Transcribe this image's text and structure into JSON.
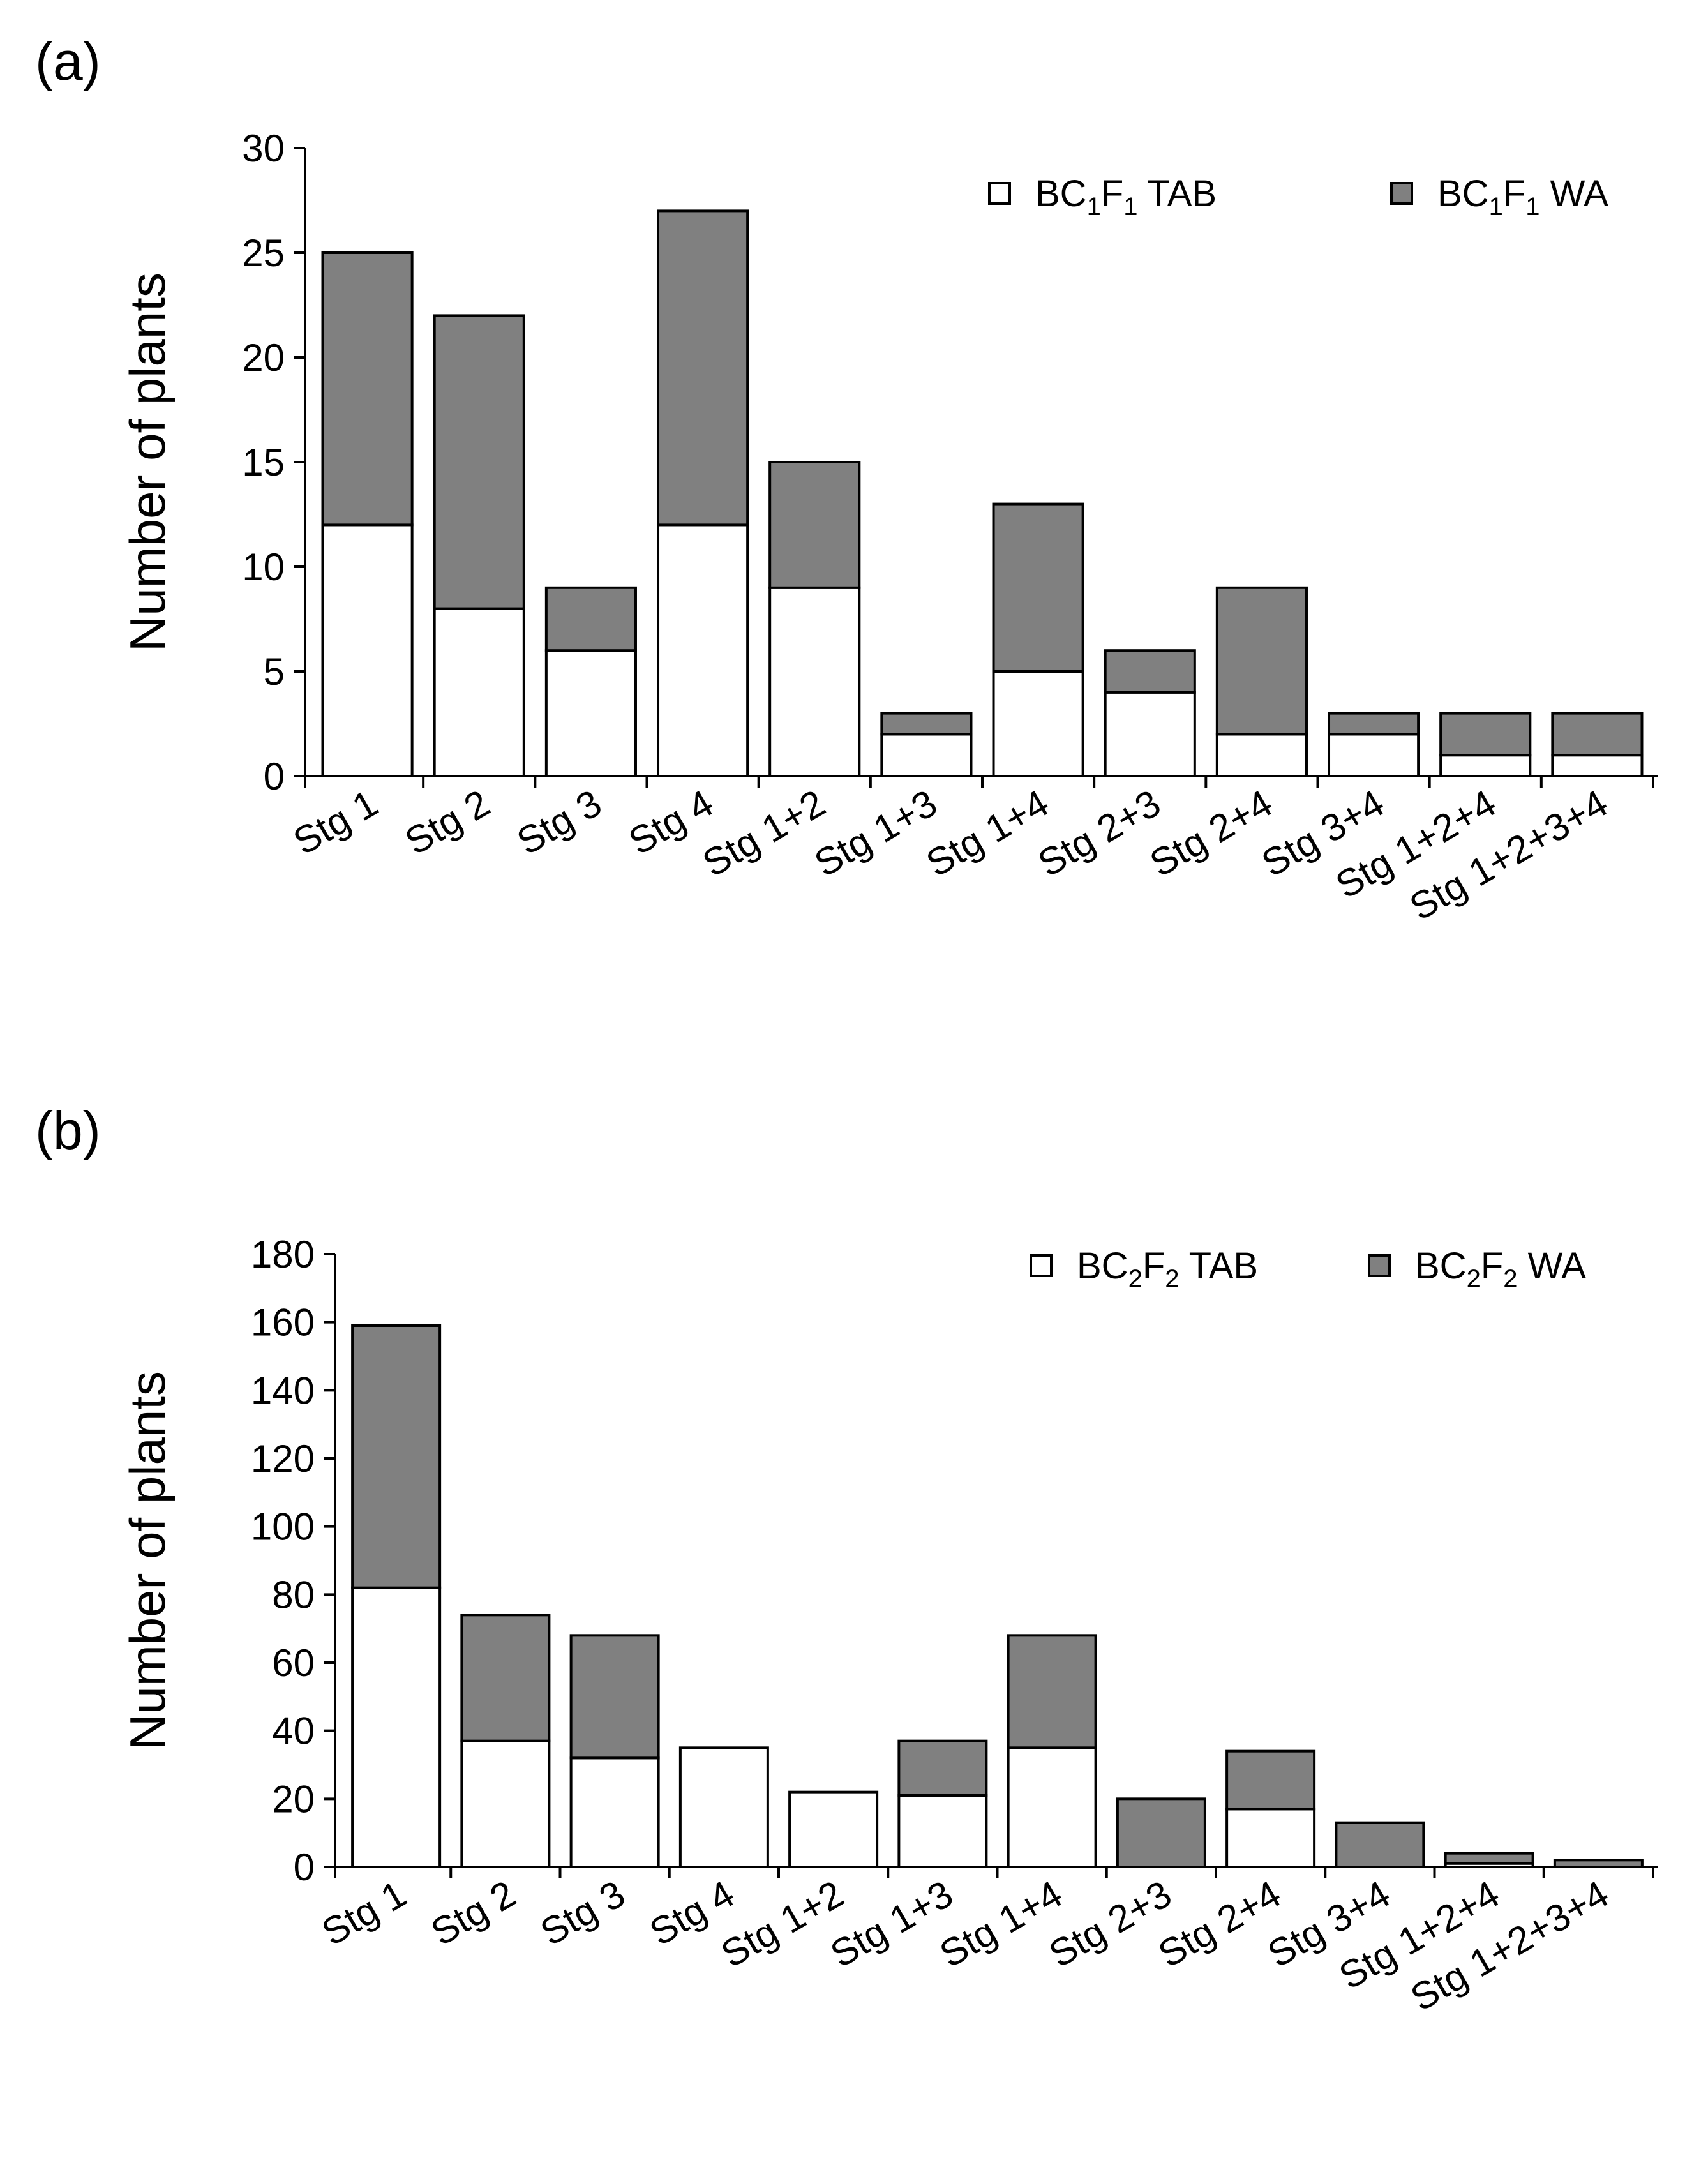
{
  "chart_data": [
    {
      "type": "bar",
      "stacked": true,
      "panel_label": "(a)",
      "ylabel": "Number of plants",
      "ylim": [
        0,
        30
      ],
      "yticks": [
        0,
        5,
        10,
        15,
        20,
        25,
        30
      ],
      "categories": [
        "Stg 1",
        "Stg 2",
        "Stg 3",
        "Stg 4",
        "Stg 1+2",
        "Stg 1+3",
        "Stg 1+4",
        "Stg 2+3",
        "Stg 2+4",
        "Stg 3+4",
        "Stg 1+2+4",
        "Stg 1+2+3+4"
      ],
      "series": [
        {
          "name": "BC1F1 TAB",
          "label_parts": [
            "BC",
            "1",
            "F",
            "1",
            " TAB"
          ],
          "color": "#ffffff",
          "values": [
            12,
            8,
            6,
            12,
            9,
            2,
            5,
            4,
            2,
            2,
            1,
            1
          ]
        },
        {
          "name": "BC1F1 WA",
          "label_parts": [
            "BC",
            "1",
            "F",
            "1",
            " WA"
          ],
          "color": "#808080",
          "values": [
            13,
            14,
            3,
            15,
            6,
            1,
            8,
            2,
            7,
            1,
            2,
            2
          ]
        }
      ],
      "legend_position": "top-right"
    },
    {
      "type": "bar",
      "stacked": true,
      "panel_label": "(b)",
      "ylabel": "Number of plants",
      "ylim": [
        0,
        180
      ],
      "yticks": [
        0,
        20,
        40,
        60,
        80,
        100,
        120,
        140,
        160,
        180
      ],
      "categories": [
        "Stg 1",
        "Stg 2",
        "Stg 3",
        "Stg 4",
        "Stg 1+2",
        "Stg 1+3",
        "Stg 1+4",
        "Stg 2+3",
        "Stg 2+4",
        "Stg 3+4",
        "Stg 1+2+4",
        "Stg 1+2+3+4"
      ],
      "series": [
        {
          "name": "BC2F2 TAB",
          "label_parts": [
            "BC",
            "2",
            "F",
            "2",
            " TAB"
          ],
          "color": "#ffffff",
          "values": [
            82,
            37,
            32,
            35,
            22,
            21,
            35,
            0,
            17,
            0,
            1,
            0
          ]
        },
        {
          "name": "BC2F2 WA",
          "label_parts": [
            "BC",
            "2",
            "F",
            "2",
            " WA"
          ],
          "color": "#808080",
          "values": [
            77,
            37,
            36,
            0,
            0,
            16,
            33,
            20,
            17,
            13,
            3,
            2
          ]
        }
      ],
      "legend_position": "top-right"
    }
  ]
}
